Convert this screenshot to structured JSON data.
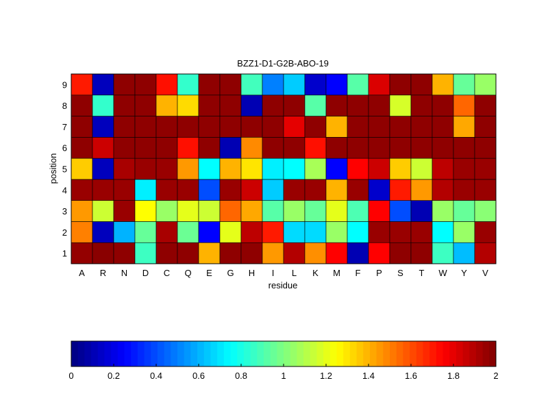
{
  "chart_data": {
    "type": "heatmap",
    "title": "BZZ1-D1-G2B-ABO-19",
    "xlabel": "residue",
    "ylabel": "position",
    "x_categories": [
      "A",
      "R",
      "N",
      "D",
      "C",
      "Q",
      "E",
      "G",
      "H",
      "I",
      "L",
      "K",
      "M",
      "F",
      "P",
      "S",
      "T",
      "W",
      "Y",
      "V"
    ],
    "y_categories": [
      "1",
      "2",
      "3",
      "4",
      "5",
      "6",
      "7",
      "8",
      "9"
    ],
    "values": [
      [
        1.96,
        1.98,
        1.97,
        0.87,
        1.97,
        1.97,
        1.4,
        1.97,
        1.97,
        1.45,
        1.9,
        1.47,
        1.75,
        0.1,
        1.75,
        1.97,
        1.97,
        0.87,
        0.62,
        1.9
      ],
      [
        1.5,
        0.12,
        0.6,
        0.95,
        1.92,
        0.96,
        0.25,
        1.2,
        1.88,
        1.7,
        0.68,
        0.68,
        1.05,
        0.75,
        1.95,
        1.95,
        1.95,
        0.75,
        1.05,
        1.95
      ],
      [
        1.45,
        1.15,
        1.95,
        1.25,
        1.05,
        1.2,
        1.15,
        1.55,
        1.42,
        0.92,
        1.05,
        0.95,
        1.2,
        0.9,
        1.75,
        0.4,
        0.1,
        1.05,
        0.95,
        1.02
      ],
      [
        1.95,
        1.95,
        1.95,
        0.72,
        1.95,
        1.95,
        0.4,
        1.95,
        1.85,
        0.65,
        1.95,
        1.95,
        1.4,
        1.95,
        0.15,
        1.7,
        1.45,
        1.9,
        1.95,
        1.95
      ],
      [
        1.35,
        0.12,
        1.92,
        1.95,
        1.95,
        1.45,
        0.75,
        1.4,
        1.3,
        0.72,
        0.75,
        1.08,
        0.25,
        1.75,
        1.85,
        1.35,
        1.15,
        1.88,
        1.95,
        1.95
      ],
      [
        1.97,
        1.85,
        1.97,
        1.97,
        1.97,
        1.72,
        1.97,
        0.1,
        1.48,
        1.97,
        1.97,
        1.72,
        1.97,
        1.97,
        1.97,
        1.97,
        1.97,
        1.97,
        1.97,
        1.97
      ],
      [
        1.97,
        0.12,
        1.97,
        1.97,
        1.97,
        1.97,
        1.97,
        1.97,
        1.97,
        1.97,
        1.8,
        1.97,
        1.4,
        1.97,
        1.97,
        1.97,
        1.97,
        1.97,
        1.42,
        1.97
      ],
      [
        1.97,
        0.85,
        1.97,
        1.97,
        1.4,
        1.32,
        1.97,
        1.97,
        0.1,
        1.97,
        1.97,
        0.92,
        1.97,
        1.97,
        1.97,
        1.17,
        1.97,
        1.97,
        1.55,
        1.97
      ],
      [
        1.7,
        0.12,
        1.97,
        1.97,
        1.72,
        0.85,
        1.97,
        1.97,
        0.88,
        0.5,
        0.65,
        0.15,
        0.25,
        0.92,
        1.82,
        1.97,
        1.97,
        1.4,
        0.95,
        1.05
      ]
    ],
    "colormap": "jet",
    "clim": [
      0,
      2
    ],
    "colorbar": {
      "orientation": "horizontal",
      "ticks": [
        "0",
        "0.2",
        "0.4",
        "0.6",
        "0.8",
        "1",
        "1.2",
        "1.4",
        "1.6",
        "1.8",
        "2"
      ]
    },
    "grid": false
  }
}
